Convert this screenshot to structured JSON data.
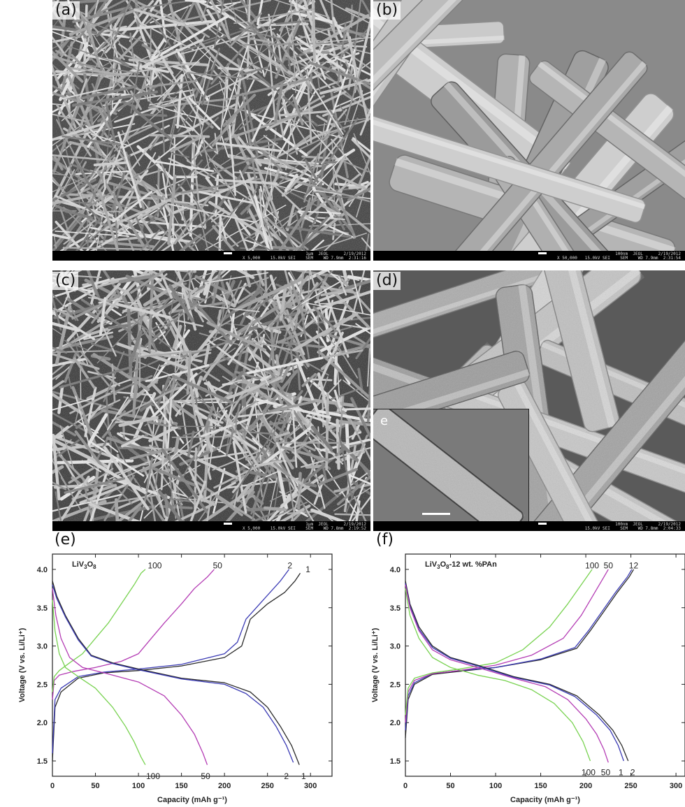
{
  "figure": {
    "panels": [
      {
        "letter": "(a)",
        "scale_line1": "1μm  JEOL      2/19/2012",
        "scale_line2": "X 5,000    15.0kV SEI    SEM    WD 7.9mm  2:31:16"
      },
      {
        "letter": "(b)",
        "scale_line1": "100nm  JEOL      2/19/2012",
        "scale_line2": "X 50,000   15.0kV SEI    SEM    WD 7.9mm  2:31:54"
      },
      {
        "letter": "(c)",
        "scale_line1": "1μm  JEOL      2/19/2012",
        "scale_line2": "X 5,000    15.0kV SEI    SEM    WD 7.8mm  2:19:52"
      },
      {
        "letter": "(d)",
        "scale_line1": "100nm  JEOL      2/19/2012",
        "scale_line2": "15.0kV SEI    SEM    WD 7.8mm  2:04:33"
      }
    ],
    "inset_letter": "e"
  },
  "chart_data": [
    {
      "type": "line",
      "panel_letter": "(e)",
      "title": "LiV3O8",
      "xlabel": "Capacity (mAh g⁻¹)",
      "ylabel": "Voltage (V vs. Li/Li⁺)",
      "xlim": [
        0,
        325
      ],
      "ylim": [
        1.3,
        4.2
      ],
      "xticks": [
        0,
        50,
        100,
        150,
        200,
        250,
        300
      ],
      "yticks": [
        1.5,
        2.0,
        2.5,
        3.0,
        3.5,
        4.0
      ],
      "grid": false,
      "series": [
        {
          "name": "1",
          "color": "#2a2a2a",
          "kind": "charge",
          "label_at": [
            297,
            4.0
          ],
          "x": [
            0,
            3,
            10,
            30,
            60,
            100,
            150,
            200,
            220,
            230,
            250,
            270,
            282,
            288
          ],
          "y": [
            1.5,
            2.2,
            2.4,
            2.58,
            2.65,
            2.68,
            2.74,
            2.85,
            3.0,
            3.35,
            3.55,
            3.7,
            3.85,
            3.95
          ]
        },
        {
          "name": "2",
          "color": "#3a3ab4",
          "kind": "charge",
          "label_at": [
            276,
            4.05
          ],
          "x": [
            0,
            3,
            10,
            30,
            60,
            100,
            150,
            200,
            215,
            225,
            245,
            265,
            275
          ],
          "y": [
            1.6,
            2.3,
            2.45,
            2.6,
            2.66,
            2.7,
            2.76,
            2.9,
            3.05,
            3.35,
            3.6,
            3.85,
            4.0
          ]
        },
        {
          "name": "50",
          "color": "#b43cb4",
          "kind": "charge",
          "label_at": [
            192,
            4.05
          ],
          "x": [
            0,
            2,
            8,
            25,
            50,
            80,
            100,
            115,
            130,
            150,
            165,
            180,
            188
          ],
          "y": [
            2.3,
            2.55,
            2.62,
            2.67,
            2.72,
            2.8,
            2.9,
            3.1,
            3.3,
            3.55,
            3.75,
            3.9,
            4.0
          ]
        },
        {
          "name": "100",
          "color": "#78d250",
          "kind": "charge",
          "label_at": [
            119,
            4.05
          ],
          "x": [
            0,
            2,
            8,
            20,
            35,
            50,
            65,
            80,
            95,
            103,
            108
          ],
          "y": [
            2.4,
            2.6,
            2.68,
            2.78,
            2.9,
            3.1,
            3.3,
            3.55,
            3.8,
            3.95,
            4.0
          ]
        },
        {
          "name": "1",
          "color": "#2a2a2a",
          "kind": "discharge",
          "label_at": [
            292,
            1.3
          ],
          "x": [
            0,
            5,
            15,
            30,
            45,
            70,
            100,
            150,
            200,
            230,
            250,
            265,
            278,
            287
          ],
          "y": [
            3.85,
            3.65,
            3.4,
            3.1,
            2.88,
            2.78,
            2.7,
            2.58,
            2.52,
            2.4,
            2.2,
            1.95,
            1.7,
            1.45
          ]
        },
        {
          "name": "2",
          "color": "#3a3ab4",
          "kind": "discharge",
          "label_at": [
            272,
            1.3
          ],
          "x": [
            0,
            5,
            15,
            30,
            45,
            70,
            100,
            150,
            200,
            225,
            245,
            260,
            272,
            280
          ],
          "y": [
            3.8,
            3.62,
            3.38,
            3.08,
            2.87,
            2.77,
            2.69,
            2.57,
            2.5,
            2.38,
            2.2,
            1.95,
            1.7,
            1.48
          ]
        },
        {
          "name": "50",
          "color": "#b43cb4",
          "kind": "discharge",
          "label_at": [
            178,
            1.3
          ],
          "x": [
            0,
            4,
            10,
            20,
            35,
            60,
            100,
            130,
            150,
            165,
            175,
            180
          ],
          "y": [
            3.75,
            3.4,
            3.1,
            2.85,
            2.72,
            2.65,
            2.53,
            2.35,
            2.1,
            1.85,
            1.6,
            1.45
          ]
        },
        {
          "name": "100",
          "color": "#78d250",
          "kind": "discharge",
          "label_at": [
            117,
            1.3
          ],
          "x": [
            0,
            3,
            8,
            15,
            30,
            50,
            70,
            85,
            95,
            103,
            108
          ],
          "y": [
            3.6,
            3.2,
            2.9,
            2.72,
            2.6,
            2.45,
            2.2,
            1.95,
            1.75,
            1.55,
            1.45
          ]
        }
      ]
    },
    {
      "type": "line",
      "panel_letter": "(f)",
      "title": "LiV3O8-12 wt. %PAn",
      "xlabel": "Capacity (mAh g⁻¹)",
      "ylabel": "Voltage (V vs. Li/Li⁺)",
      "xlim": [
        0,
        310
      ],
      "ylim": [
        1.3,
        4.2
      ],
      "xticks": [
        0,
        50,
        100,
        150,
        200,
        250,
        300
      ],
      "yticks": [
        1.5,
        2.0,
        2.5,
        3.0,
        3.5,
        4.0
      ],
      "grid": false,
      "series": [
        {
          "name": "12",
          "color": "#2a2a2a",
          "kind": "charge",
          "label_at": [
            253,
            4.05
          ],
          "x": [
            0,
            3,
            10,
            30,
            60,
            100,
            150,
            190,
            205,
            220,
            235,
            248,
            253
          ],
          "y": [
            1.8,
            2.3,
            2.5,
            2.63,
            2.67,
            2.72,
            2.82,
            2.97,
            3.2,
            3.45,
            3.7,
            3.9,
            4.0
          ]
        },
        {
          "name": "",
          "color": "#3a3ab4",
          "kind": "charge",
          "x": [
            0,
            3,
            10,
            30,
            60,
            100,
            150,
            188,
            203,
            218,
            233,
            246,
            251
          ],
          "y": [
            1.9,
            2.35,
            2.52,
            2.64,
            2.68,
            2.72,
            2.83,
            2.98,
            3.2,
            3.45,
            3.7,
            3.9,
            4.0
          ]
        },
        {
          "name": "50",
          "color": "#b43cb4",
          "kind": "charge",
          "label_at": [
            225,
            4.05
          ],
          "x": [
            0,
            3,
            10,
            30,
            60,
            100,
            140,
            175,
            195,
            210,
            220,
            225
          ],
          "y": [
            2.0,
            2.4,
            2.55,
            2.64,
            2.68,
            2.75,
            2.88,
            3.1,
            3.4,
            3.7,
            3.9,
            4.0
          ]
        },
        {
          "name": "100",
          "color": "#78d250",
          "kind": "charge",
          "label_at": [
            207,
            4.05
          ],
          "x": [
            0,
            3,
            10,
            30,
            60,
            100,
            130,
            160,
            180,
            195,
            207
          ],
          "y": [
            2.1,
            2.45,
            2.58,
            2.65,
            2.7,
            2.78,
            2.95,
            3.25,
            3.55,
            3.8,
            4.0
          ]
        },
        {
          "name": "2",
          "color": "#2a2a2a",
          "kind": "discharge",
          "label_at": [
            252,
            1.35
          ],
          "x": [
            0,
            5,
            15,
            30,
            50,
            80,
            120,
            160,
            190,
            215,
            230,
            240,
            247
          ],
          "y": [
            3.85,
            3.55,
            3.25,
            3.0,
            2.85,
            2.75,
            2.6,
            2.5,
            2.35,
            2.1,
            1.9,
            1.7,
            1.5
          ]
        },
        {
          "name": "1",
          "color": "#3a3ab4",
          "kind": "discharge",
          "label_at": [
            239,
            1.35
          ],
          "x": [
            0,
            5,
            15,
            30,
            50,
            80,
            120,
            160,
            188,
            212,
            227,
            236,
            242
          ],
          "y": [
            3.82,
            3.52,
            3.22,
            2.98,
            2.84,
            2.74,
            2.59,
            2.49,
            2.34,
            2.1,
            1.9,
            1.7,
            1.5
          ]
        },
        {
          "name": "50",
          "color": "#b43cb4",
          "kind": "discharge",
          "label_at": [
            222,
            1.35
          ],
          "x": [
            0,
            5,
            15,
            30,
            50,
            80,
            120,
            155,
            180,
            200,
            212,
            220,
            225
          ],
          "y": [
            3.8,
            3.5,
            3.2,
            2.95,
            2.82,
            2.72,
            2.58,
            2.47,
            2.3,
            2.05,
            1.85,
            1.65,
            1.48
          ]
        },
        {
          "name": "100",
          "color": "#78d250",
          "kind": "discharge",
          "label_at": [
            203,
            1.35
          ],
          "x": [
            0,
            5,
            15,
            30,
            50,
            80,
            110,
            140,
            165,
            185,
            197,
            205
          ],
          "y": [
            3.75,
            3.4,
            3.1,
            2.85,
            2.72,
            2.62,
            2.55,
            2.43,
            2.25,
            2.0,
            1.75,
            1.5
          ]
        }
      ]
    }
  ]
}
